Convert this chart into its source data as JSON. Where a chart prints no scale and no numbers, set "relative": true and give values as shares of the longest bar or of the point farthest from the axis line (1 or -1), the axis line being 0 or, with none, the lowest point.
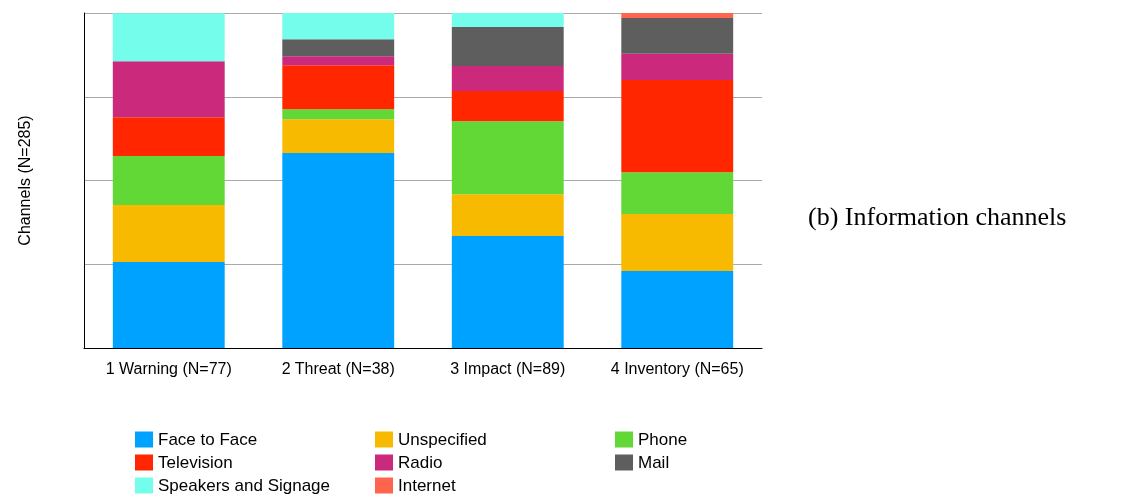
{
  "chart_data": {
    "type": "bar",
    "stacked": true,
    "relative": true,
    "ylabel": "Channels (N=285)",
    "categories": [
      "1 Warning (N=77)",
      "2 Threat (N=38)",
      "3 Impact (N=89)",
      "4 Inventory (N=65)"
    ],
    "series": [
      {
        "name": "Face to Face",
        "color": "#00a2ff",
        "values": [
          0.257,
          0.582,
          0.334,
          0.23
        ]
      },
      {
        "name": "Unspecified",
        "color": "#f8ba00",
        "values": [
          0.17,
          0.101,
          0.125,
          0.17
        ]
      },
      {
        "name": "Phone",
        "color": "#61d836",
        "values": [
          0.146,
          0.03,
          0.218,
          0.125
        ]
      },
      {
        "name": "Television",
        "color": "#ff2600",
        "values": [
          0.116,
          0.131,
          0.09,
          0.275
        ]
      },
      {
        "name": "Radio",
        "color": "#cb297b",
        "values": [
          0.167,
          0.027,
          0.075,
          0.078
        ]
      },
      {
        "name": "Mail",
        "color": "#5e5e5e",
        "values": [
          0,
          0.051,
          0.116,
          0.107
        ]
      },
      {
        "name": "Speakers and Signage",
        "color": "#73fdea",
        "values": [
          0.143,
          0.078,
          0.042,
          0
        ]
      },
      {
        "name": "Internet",
        "color": "#ff644e",
        "values": [
          0,
          0,
          0,
          0.015
        ]
      }
    ],
    "grid": "y",
    "legend": "bottom",
    "annotations": [
      "(b) Information channels"
    ]
  }
}
